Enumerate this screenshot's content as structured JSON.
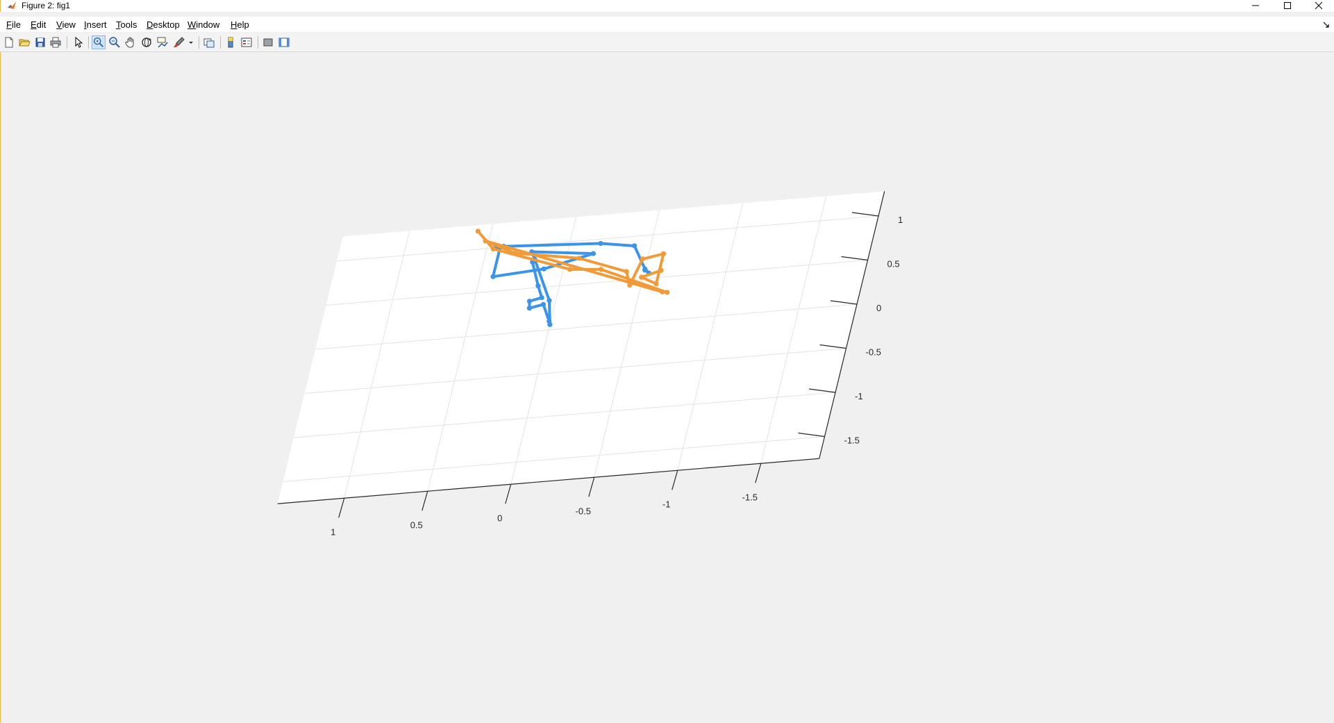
{
  "window": {
    "title": "Figure 2: fig1",
    "app_icon": "matlab-icon",
    "controls": [
      "minimize-icon",
      "maximize-icon",
      "close-icon"
    ]
  },
  "menu": [
    {
      "label": "File",
      "underline": "F",
      "rest": "ile"
    },
    {
      "label": "Edit",
      "underline": "E",
      "rest": "dit"
    },
    {
      "label": "View",
      "underline": "V",
      "rest": "iew"
    },
    {
      "label": "Insert",
      "underline": "I",
      "rest": "nsert"
    },
    {
      "label": "Tools",
      "underline": "T",
      "rest": "ools"
    },
    {
      "label": "Desktop",
      "underline": "D",
      "rest": "esktop"
    },
    {
      "label": "Window",
      "underline": "W",
      "rest": "indow"
    },
    {
      "label": "Help",
      "underline": "H",
      "rest": "elp"
    }
  ],
  "toolbar": {
    "tools": [
      "new-figure-icon",
      "open-file-icon",
      "save-icon",
      "print-icon",
      "edit-plot-icon",
      "zoom-in-icon",
      "zoom-out-icon",
      "pan-icon",
      "rotate-3d-icon",
      "data-cursor-icon",
      "brush-icon",
      "link-plot-icon",
      "insert-colorbar-icon",
      "insert-legend-icon",
      "hide-plot-tools-icon",
      "show-plot-tools-icon"
    ],
    "active_tool": "zoom-in-icon"
  },
  "chart_data": {
    "type": "line3d",
    "title": "",
    "xlabel": "",
    "ylabel": "",
    "x_ticks": [
      "1",
      "0.5",
      "0",
      "-0.5",
      "-1",
      "-1.5"
    ],
    "y_ticks": [
      "1",
      "0.5",
      "0",
      "-0.5",
      "-1",
      "-1.5"
    ],
    "grid": true,
    "series": [
      {
        "color": "#3a94e9",
        "points": [
          [
            0.2,
            0.8
          ],
          [
            0.13,
            0.52
          ],
          [
            0.09,
            0.38
          ],
          [
            0.16,
            0.35
          ],
          [
            0.15,
            0.27
          ],
          [
            0.07,
            0.3
          ],
          [
            0.01,
            0.1
          ],
          [
            0.0,
            0.06
          ],
          [
            0.04,
            0.34
          ],
          [
            0.19,
            0.83
          ],
          [
            0.22,
            0.92
          ],
          [
            -0.16,
            0.84
          ],
          [
            0.12,
            0.71
          ],
          [
            0.42,
            0.67
          ],
          [
            0.42,
            1.0
          ],
          [
            0.45,
            1.0
          ],
          [
            0.4,
            1.01
          ],
          [
            -0.19,
            0.95
          ],
          [
            -0.4,
            0.89
          ],
          [
            -0.5,
            0.61
          ],
          [
            -0.53,
            0.56
          ],
          [
            -0.5,
            0.6
          ]
        ]
      },
      {
        "color": "#f29a38",
        "points": [
          [
            0.58,
            1.21
          ],
          [
            0.46,
            0.99
          ],
          [
            -0.04,
            0.68
          ],
          [
            -0.23,
            0.65
          ],
          [
            -0.67,
            0.32
          ],
          [
            -0.64,
            0.33
          ],
          [
            0.52,
            1.09
          ],
          [
            0.32,
            0.92
          ],
          [
            -0.08,
            0.8
          ],
          [
            -0.39,
            0.6
          ],
          [
            -0.43,
            0.44
          ],
          [
            -0.47,
            0.73
          ],
          [
            -0.59,
            0.77
          ],
          [
            -0.59,
            0.43
          ],
          [
            -0.49,
            0.52
          ],
          [
            -0.6,
            0.58
          ]
        ]
      }
    ]
  }
}
